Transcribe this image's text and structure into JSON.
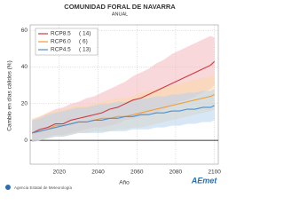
{
  "chart_data": {
    "type": "line",
    "title": "COMUNIDAD FORAL DE NAVARRA",
    "subtitle": "ANUAL",
    "x_label": "Año",
    "y_label": "Cambio en días cálidos (%)",
    "x": [
      2006,
      2010,
      2014,
      2018,
      2022,
      2026,
      2030,
      2034,
      2038,
      2042,
      2046,
      2050,
      2054,
      2058,
      2062,
      2066,
      2070,
      2074,
      2078,
      2082,
      2086,
      2090,
      2094,
      2098,
      2100
    ],
    "series": [
      {
        "name": "RCP8.5",
        "label": "( 14)",
        "color": "#d0393e",
        "band_color": "#f2b8bc",
        "values": [
          4,
          6,
          7,
          9,
          9,
          11,
          12,
          13,
          14,
          15,
          17,
          18,
          20,
          22,
          23,
          25,
          27,
          29,
          31,
          33,
          35,
          37,
          39,
          41,
          43
        ],
        "upper": [
          11,
          13,
          15,
          17,
          18,
          20,
          21,
          23,
          24,
          26,
          28,
          30,
          32,
          35,
          37,
          39,
          42,
          44,
          47,
          49,
          51,
          53,
          55,
          57,
          56
        ],
        "lower": [
          0,
          1,
          2,
          3,
          3,
          4,
          5,
          6,
          7,
          7,
          8,
          9,
          11,
          12,
          13,
          14,
          15,
          17,
          19,
          21,
          22,
          24,
          26,
          28,
          30
        ]
      },
      {
        "name": "RCP6.0",
        "label": "( 6)",
        "color": "#f39c34",
        "band_color": "#fbd9a8",
        "values": [
          4,
          5,
          6,
          8,
          8,
          9,
          10,
          10,
          11,
          12,
          12,
          13,
          13,
          14,
          15,
          16,
          17,
          18,
          19,
          20,
          21,
          22,
          23,
          24,
          25
        ],
        "upper": [
          12,
          13,
          15,
          16,
          17,
          18,
          19,
          19,
          20,
          21,
          22,
          23,
          23,
          24,
          26,
          27,
          28,
          29,
          30,
          31,
          32,
          33,
          34,
          35,
          36
        ],
        "lower": [
          -1,
          0,
          1,
          2,
          2,
          3,
          4,
          4,
          5,
          5,
          5,
          6,
          6,
          7,
          7,
          8,
          9,
          10,
          11,
          12,
          13,
          14,
          15,
          16,
          17
        ]
      },
      {
        "name": "RCP4.5",
        "label": "( 13)",
        "color": "#4a8fd1",
        "band_color": "#b7d4ee",
        "values": [
          4,
          5,
          6,
          7,
          8,
          9,
          10,
          10,
          11,
          11,
          12,
          12,
          13,
          13,
          14,
          14,
          15,
          15,
          16,
          16,
          17,
          17,
          18,
          18,
          19
        ],
        "upper": [
          11,
          12,
          14,
          15,
          16,
          17,
          18,
          18,
          19,
          20,
          20,
          21,
          21,
          22,
          23,
          23,
          24,
          24,
          25,
          25,
          26,
          26,
          27,
          27,
          28
        ],
        "lower": [
          -1,
          0,
          1,
          2,
          2,
          3,
          4,
          4,
          4,
          4,
          5,
          5,
          5,
          6,
          6,
          6,
          7,
          7,
          8,
          8,
          9,
          9,
          10,
          10,
          11
        ]
      }
    ],
    "xlim": [
      2005,
      2102
    ],
    "ylim": [
      -13,
      63
    ],
    "xticks": [
      2020,
      2040,
      2060,
      2080,
      2100
    ],
    "yticks": [
      0,
      20,
      40,
      60
    ],
    "grid": true,
    "footer": "Agencia Estatal de Meteorología",
    "logo": "AEmet"
  }
}
